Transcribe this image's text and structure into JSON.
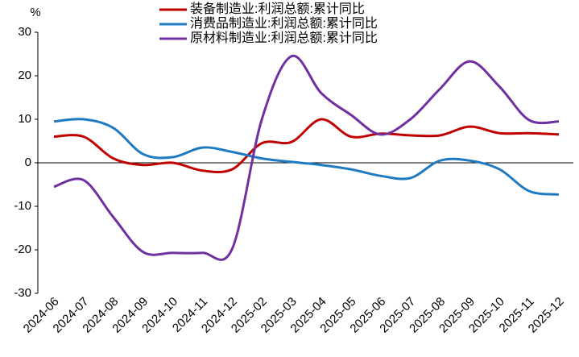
{
  "chart_data": {
    "type": "line",
    "y_label": "%",
    "categories": [
      "2024-06",
      "2024-07",
      "2024-08",
      "2024-09",
      "2024-10",
      "2024-11",
      "2024-12",
      "2025-02",
      "2025-03",
      "2025-04",
      "2025-05",
      "2025-06",
      "2025-07",
      "2025-08",
      "2025-09",
      "2025-10",
      "2025-11",
      "2025-12"
    ],
    "series": [
      {
        "name": "装备制造业:利润总额:累计同比",
        "color": "#c00000",
        "values": [
          6,
          6,
          1,
          -0.5,
          0,
          -1.8,
          -1.5,
          4.5,
          4.8,
          10,
          6,
          6.7,
          6.3,
          6.3,
          8.3,
          6.8,
          6.8,
          6.5
        ]
      },
      {
        "name": "消费品制造业:利润总额:累计同比",
        "color": "#1f7bc1",
        "values": [
          9.5,
          10,
          8,
          2,
          1.3,
          3.5,
          2.5,
          1,
          0.2,
          -0.5,
          -1.5,
          -3,
          -3.5,
          0.5,
          0.5,
          -1.5,
          -6.5,
          -7.3
        ]
      },
      {
        "name": "原材料制造业:利润总额:累计同比",
        "color": "#7030a0",
        "values": [
          -5.5,
          -4,
          -12.5,
          -20.5,
          -20.7,
          -20.7,
          -19.8,
          10,
          24.5,
          16,
          11,
          6.5,
          10,
          17,
          23.3,
          17.5,
          9.8,
          9.5
        ]
      }
    ],
    "ylim": [
      -30,
      30
    ],
    "yticks": [
      -30,
      -20,
      -10,
      0,
      10,
      20,
      30
    ],
    "legend": "top"
  }
}
